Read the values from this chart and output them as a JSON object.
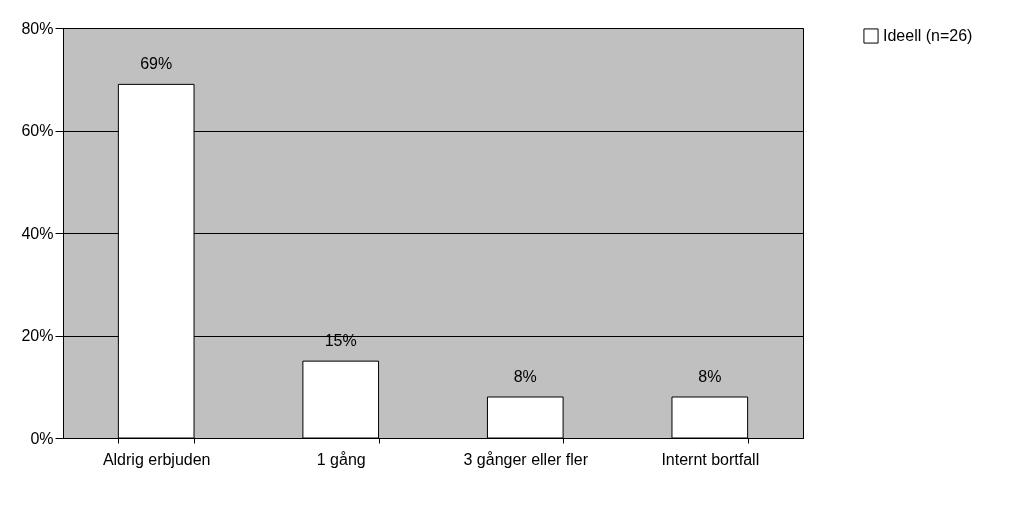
{
  "chart_data": {
    "type": "bar",
    "categories": [
      "Aldrig erbjuden",
      "1 gång",
      "3 gånger eller fler",
      "Internt bortfall"
    ],
    "series": [
      {
        "name": "Ideell (n=26)",
        "color": "#ffffff",
        "values": [
          69,
          15,
          8,
          8
        ],
        "value_labels": [
          "69%",
          "15%",
          "8%",
          "8%"
        ]
      }
    ],
    "ylim": [
      0,
      80
    ],
    "yticks": [
      {
        "value": 0,
        "label": "0%"
      },
      {
        "value": 20,
        "label": "20%"
      },
      {
        "value": 40,
        "label": "40%"
      },
      {
        "value": 60,
        "label": "60%"
      },
      {
        "value": 80,
        "label": "80%"
      }
    ],
    "grid": "y",
    "legend": "right"
  }
}
